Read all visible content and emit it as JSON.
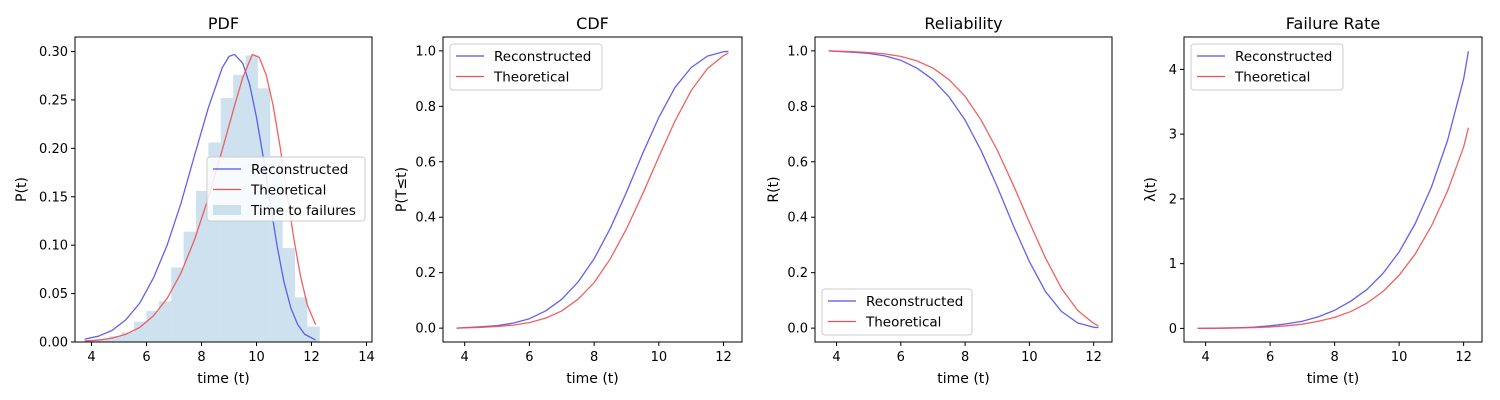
{
  "colors": {
    "reconstructed": "#5050f0",
    "theoretical": "#f05050",
    "histogram": "#a6c8e0"
  },
  "chart_data": [
    {
      "type": "line",
      "title": "PDF",
      "xlabel": "time (t)",
      "ylabel": "P(t)",
      "xlim": [
        3.4,
        14.2
      ],
      "ylim": [
        0,
        0.315
      ],
      "xticks": [
        4,
        6,
        8,
        10,
        12,
        14
      ],
      "xtick_labels": [
        "4",
        "6",
        "8",
        "10",
        "12",
        "14"
      ],
      "yticks": [
        0.0,
        0.05,
        0.1,
        0.15,
        0.2,
        0.25,
        0.3
      ],
      "ytick_labels": [
        "0.00",
        "0.05",
        "0.10",
        "0.15",
        "0.20",
        "0.25",
        "0.30"
      ],
      "legend_position": "center-right",
      "series": [
        {
          "name": "Reconstructed",
          "color_key": "reconstructed",
          "x": [
            3.75,
            4.25,
            4.75,
            5.25,
            5.75,
            6.25,
            6.75,
            7.25,
            7.75,
            8.25,
            8.75,
            9.0,
            9.2,
            9.5,
            9.75,
            10.0,
            10.25,
            10.5,
            10.75,
            11.0,
            11.25,
            11.5,
            11.75,
            12.15
          ],
          "y": [
            0.003,
            0.006,
            0.012,
            0.023,
            0.04,
            0.066,
            0.1,
            0.143,
            0.193,
            0.242,
            0.283,
            0.295,
            0.297,
            0.288,
            0.266,
            0.232,
            0.19,
            0.143,
            0.099,
            0.062,
            0.035,
            0.018,
            0.008,
            0.002
          ]
        },
        {
          "name": "Theoretical",
          "color_key": "theoretical",
          "x": [
            3.75,
            4.25,
            4.75,
            5.25,
            5.75,
            6.25,
            6.75,
            7.25,
            7.75,
            8.25,
            8.75,
            9.25,
            9.5,
            9.85,
            10.1,
            10.35,
            10.6,
            10.85,
            11.1,
            11.35,
            11.6,
            11.85,
            12.15
          ],
          "y": [
            0.001,
            0.002,
            0.004,
            0.008,
            0.015,
            0.027,
            0.045,
            0.071,
            0.106,
            0.149,
            0.198,
            0.249,
            0.273,
            0.297,
            0.294,
            0.276,
            0.245,
            0.203,
            0.155,
            0.108,
            0.068,
            0.038,
            0.018
          ]
        },
        {
          "name": "Time to failures",
          "type": "histogram",
          "color_key": "histogram",
          "bin_edges": [
            3.75,
            4.2,
            4.65,
            5.1,
            5.55,
            6.0,
            6.45,
            6.9,
            7.35,
            7.8,
            8.25,
            8.7,
            9.15,
            9.6,
            10.05,
            10.5,
            10.95,
            11.4,
            11.85,
            12.3,
            12.75
          ],
          "values": [
            0.002,
            0.003,
            0.006,
            0.01,
            0.021,
            0.032,
            0.042,
            0.077,
            0.114,
            0.156,
            0.206,
            0.252,
            0.276,
            0.296,
            0.262,
            0.192,
            0.097,
            0.046,
            0.016,
            0.0
          ]
        }
      ]
    },
    {
      "type": "line",
      "title": "CDF",
      "xlabel": "time (t)",
      "ylabel": "P(T≤t)",
      "xlim": [
        3.33,
        12.57
      ],
      "ylim": [
        -0.05,
        1.05
      ],
      "xticks": [
        4,
        6,
        8,
        10,
        12
      ],
      "xtick_labels": [
        "4",
        "6",
        "8",
        "10",
        "12"
      ],
      "yticks": [
        0.0,
        0.2,
        0.4,
        0.6,
        0.8,
        1.0
      ],
      "ytick_labels": [
        "0.0",
        "0.2",
        "0.4",
        "0.6",
        "0.8",
        "1.0"
      ],
      "legend_position": "upper-left",
      "series": [
        {
          "name": "Reconstructed",
          "color_key": "reconstructed",
          "x": [
            3.75,
            4.5,
            5.0,
            5.5,
            6.0,
            6.5,
            7.0,
            7.5,
            8.0,
            8.5,
            9.0,
            9.5,
            10.0,
            10.5,
            11.0,
            11.5,
            12.0,
            12.15
          ],
          "y": [
            0.0,
            0.005,
            0.009,
            0.018,
            0.034,
            0.062,
            0.104,
            0.166,
            0.25,
            0.36,
            0.49,
            0.63,
            0.76,
            0.868,
            0.94,
            0.981,
            0.997,
            0.998
          ]
        },
        {
          "name": "Theoretical",
          "color_key": "theoretical",
          "x": [
            3.75,
            4.5,
            5.0,
            5.5,
            6.0,
            6.5,
            7.0,
            7.5,
            8.0,
            8.5,
            9.0,
            9.5,
            10.0,
            10.5,
            11.0,
            11.5,
            12.0,
            12.15
          ],
          "y": [
            0.0,
            0.003,
            0.006,
            0.011,
            0.02,
            0.036,
            0.062,
            0.104,
            0.164,
            0.25,
            0.358,
            0.484,
            0.618,
            0.747,
            0.857,
            0.936,
            0.983,
            0.992
          ]
        }
      ]
    },
    {
      "type": "line",
      "title": "Reliability",
      "xlabel": "time (t)",
      "ylabel": "R(t)",
      "xlim": [
        3.33,
        12.57
      ],
      "ylim": [
        -0.05,
        1.05
      ],
      "xticks": [
        4,
        6,
        8,
        10,
        12
      ],
      "xtick_labels": [
        "4",
        "6",
        "8",
        "10",
        "12"
      ],
      "yticks": [
        0.0,
        0.2,
        0.4,
        0.6,
        0.8,
        1.0
      ],
      "ytick_labels": [
        "0.0",
        "0.2",
        "0.4",
        "0.6",
        "0.8",
        "1.0"
      ],
      "legend_position": "lower-left",
      "series": [
        {
          "name": "Reconstructed",
          "color_key": "reconstructed",
          "x": [
            3.75,
            4.5,
            5.0,
            5.5,
            6.0,
            6.5,
            7.0,
            7.5,
            8.0,
            8.5,
            9.0,
            9.5,
            10.0,
            10.5,
            11.0,
            11.5,
            12.0,
            12.15
          ],
          "y": [
            1.0,
            0.995,
            0.991,
            0.982,
            0.966,
            0.938,
            0.896,
            0.834,
            0.75,
            0.64,
            0.51,
            0.37,
            0.24,
            0.132,
            0.06,
            0.019,
            0.003,
            0.002
          ]
        },
        {
          "name": "Theoretical",
          "color_key": "theoretical",
          "x": [
            3.75,
            4.5,
            5.0,
            5.5,
            6.0,
            6.5,
            7.0,
            7.5,
            8.0,
            8.5,
            9.0,
            9.5,
            10.0,
            10.5,
            11.0,
            11.5,
            12.0,
            12.15
          ],
          "y": [
            1.0,
            0.997,
            0.994,
            0.989,
            0.98,
            0.964,
            0.938,
            0.896,
            0.836,
            0.75,
            0.642,
            0.516,
            0.382,
            0.253,
            0.143,
            0.064,
            0.017,
            0.008
          ]
        }
      ]
    },
    {
      "type": "line",
      "title": "Failure Rate",
      "xlabel": "time (t)",
      "ylabel": "λ(t)",
      "xlim": [
        3.33,
        12.57
      ],
      "ylim": [
        -0.21,
        4.5
      ],
      "xticks": [
        4,
        6,
        8,
        10,
        12
      ],
      "xtick_labels": [
        "4",
        "6",
        "8",
        "10",
        "12"
      ],
      "yticks": [
        0,
        1,
        2,
        3,
        4
      ],
      "ytick_labels": [
        "0",
        "1",
        "2",
        "3",
        "4"
      ],
      "legend_position": "upper-left",
      "series": [
        {
          "name": "Reconstructed",
          "color_key": "reconstructed",
          "x": [
            3.75,
            4.5,
            5.0,
            5.5,
            6.0,
            6.5,
            7.0,
            7.5,
            8.0,
            8.5,
            9.0,
            9.5,
            10.0,
            10.5,
            11.0,
            11.5,
            12.0,
            12.15
          ],
          "y": [
            0.0,
            0.005,
            0.01,
            0.02,
            0.04,
            0.07,
            0.11,
            0.18,
            0.28,
            0.42,
            0.6,
            0.85,
            1.18,
            1.62,
            2.18,
            2.9,
            3.85,
            4.28
          ]
        },
        {
          "name": "Theoretical",
          "color_key": "theoretical",
          "x": [
            3.75,
            4.5,
            5.0,
            5.5,
            6.0,
            6.5,
            7.0,
            7.5,
            8.0,
            8.5,
            9.0,
            9.5,
            10.0,
            10.5,
            11.0,
            11.5,
            12.0,
            12.15
          ],
          "y": [
            0.0,
            0.003,
            0.006,
            0.012,
            0.022,
            0.04,
            0.065,
            0.11,
            0.17,
            0.26,
            0.39,
            0.57,
            0.82,
            1.15,
            1.58,
            2.12,
            2.8,
            3.1
          ]
        }
      ]
    }
  ]
}
